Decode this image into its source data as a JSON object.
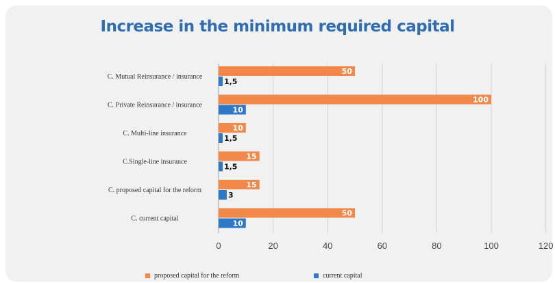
{
  "chart_data": {
    "type": "bar",
    "orientation": "horizontal",
    "title": "Increase in the minimum required capital",
    "categories": [
      "C. Mutual Reinsurance / insurance",
      "C. Private Reinsurance / insurance",
      "C. Multi-line insurance",
      "C.Single-line insurance",
      "C. proposed capital for the reform",
      "C. current capital"
    ],
    "series": [
      {
        "name": "proposed capital for the reform",
        "color": "#f0894a",
        "values": [
          50,
          100,
          10,
          15,
          15,
          50
        ],
        "labels": [
          "50",
          "100",
          "10",
          "15",
          "15",
          "50"
        ]
      },
      {
        "name": "current capital",
        "color": "#2e78c6",
        "values": [
          1.5,
          10,
          1.5,
          1.5,
          3,
          10
        ],
        "labels": [
          "1,5",
          "10",
          "1,5",
          "1,5",
          "3",
          "10"
        ]
      }
    ],
    "xlim": [
      0,
      120
    ],
    "xticks": [
      0,
      20,
      40,
      60,
      80,
      100,
      120
    ],
    "grid": true,
    "legend_position": "bottom"
  }
}
